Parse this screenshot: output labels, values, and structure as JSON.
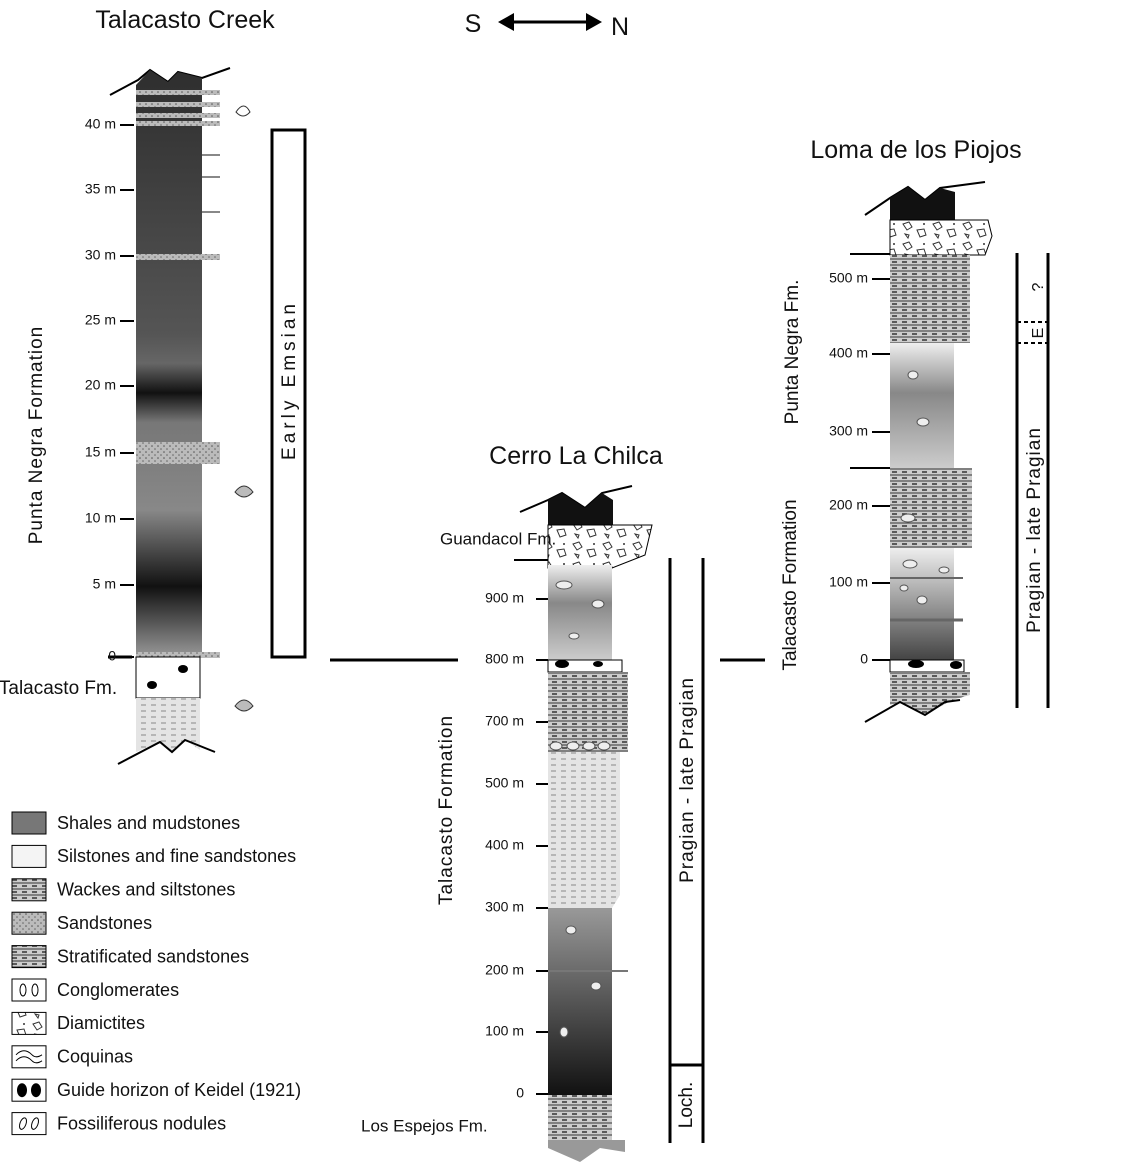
{
  "orientation": {
    "south": "S",
    "north": "N"
  },
  "columns": [
    {
      "title": "Talacasto Creek",
      "ticks": [
        "40 m",
        "35 m",
        "30 m",
        "25 m",
        "20 m",
        "15 m",
        "10 m",
        "5 m",
        "0"
      ],
      "formation_upper": "Punta Negra Formation",
      "formation_lower": "Talacasto Fm.",
      "age": "Early Emsian"
    },
    {
      "title": "Cerro La Chilca",
      "ticks": [
        "900 m",
        "800 m",
        "700 m",
        "500 m",
        "400 m",
        "300 m",
        "200 m",
        "100 m",
        "0"
      ],
      "formation_top": "Guandacol Fm.",
      "formation": "Talacasto Formation",
      "formation_bottom": "Los Espejos Fm.",
      "age": "Pragian - late Pragian",
      "age_lower": "Loch."
    },
    {
      "title": "Loma de los Piojos",
      "ticks": [
        "500 m",
        "400 m",
        "300 m",
        "200 m",
        "100 m",
        "0"
      ],
      "formation_upper": "Punta Negra Fm.",
      "formation_lower": "Talacasto Formation",
      "age": "Pragian - late Pragian",
      "age_upper": "E",
      "age_query": "?"
    }
  ],
  "legend": [
    "Shales and mudstones",
    "Silstones and fine sandstones",
    "Wackes and siltstones",
    "Sandstones",
    "Stratificated sandstones",
    "Conglomerates",
    "Diamictites",
    "Coquinas",
    "Guide horizon of Keidel (1921)",
    "Fossiliferous nodules"
  ]
}
